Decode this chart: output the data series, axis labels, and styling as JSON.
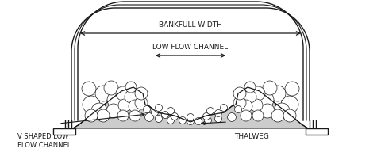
{
  "bg_color": "#ffffff",
  "line_color": "#1a1a1a",
  "rock_fill_color": "#cccccc",
  "figsize": [
    4.8,
    2.02
  ],
  "dpi": 100,
  "annotations": {
    "bankfull_width": "BANKFULL WIDTH",
    "low_flow_channel": "LOW FLOW CHANNEL",
    "v_shaped": "V SHAPED LOW\nFLOW CHANNEL",
    "thalweg": "THALWEG"
  }
}
